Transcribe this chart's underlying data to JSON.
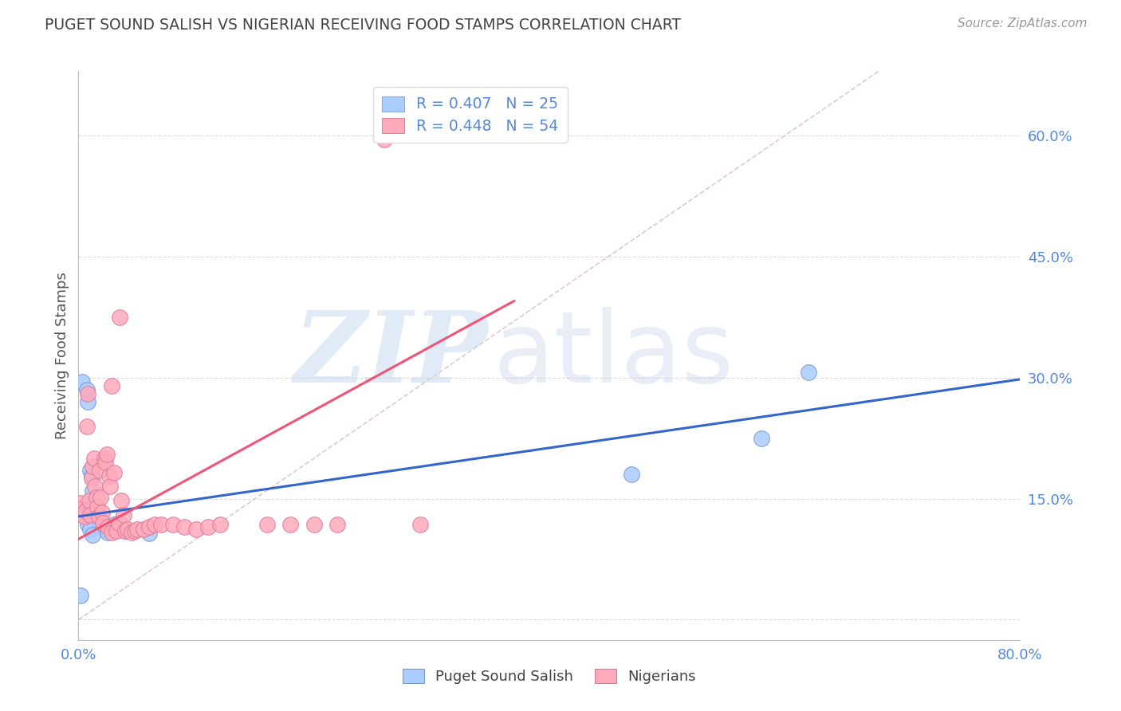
{
  "title": "PUGET SOUND SALISH VS NIGERIAN RECEIVING FOOD STAMPS CORRELATION CHART",
  "source": "Source: ZipAtlas.com",
  "ylabel": "Receiving Food Stamps",
  "xlim": [
    0.0,
    0.8
  ],
  "ylim": [
    -0.025,
    0.68
  ],
  "yticks": [
    0.0,
    0.15,
    0.3,
    0.45,
    0.6
  ],
  "ytick_labels": [
    "",
    "15.0%",
    "30.0%",
    "45.0%",
    "60.0%"
  ],
  "xticks": [
    0.0,
    0.1,
    0.2,
    0.3,
    0.4,
    0.5,
    0.6,
    0.7,
    0.8
  ],
  "xtick_labels": [
    "0.0%",
    "",
    "",
    "",
    "",
    "",
    "",
    "",
    "80.0%"
  ],
  "background_color": "#ffffff",
  "grid_color": "#cccccc",
  "title_color": "#444444",
  "tick_color": "#5588dd",
  "legend_entries": [
    {
      "label": "R = 0.407   N = 25",
      "color": "#aaccff",
      "edge": "#88aadd"
    },
    {
      "label": "R = 0.448   N = 54",
      "color": "#ffaabb",
      "edge": "#dd8899"
    }
  ],
  "pss_color": "#aaccff",
  "pss_edge": "#7799cc",
  "pss_line_color": "#3366cc",
  "pss_line": [
    [
      0.0,
      0.128
    ],
    [
      0.8,
      0.298
    ]
  ],
  "pss_points_x": [
    0.003,
    0.007,
    0.008,
    0.01,
    0.011,
    0.012,
    0.013,
    0.014,
    0.015,
    0.016,
    0.017,
    0.018,
    0.02,
    0.022,
    0.025,
    0.03,
    0.04,
    0.06,
    0.002,
    0.008,
    0.01,
    0.012,
    0.58,
    0.62,
    0.47
  ],
  "pss_points_y": [
    0.295,
    0.285,
    0.27,
    0.185,
    0.178,
    0.16,
    0.145,
    0.14,
    0.132,
    0.128,
    0.125,
    0.12,
    0.118,
    0.112,
    0.108,
    0.118,
    0.11,
    0.107,
    0.03,
    0.118,
    0.112,
    0.105,
    0.225,
    0.307,
    0.18
  ],
  "nig_color": "#ffaabb",
  "nig_edge": "#dd7799",
  "nig_line_color": "#ee5577",
  "nig_line": [
    [
      0.0,
      0.1
    ],
    [
      0.37,
      0.395
    ]
  ],
  "nig_points_x": [
    0.002,
    0.003,
    0.004,
    0.005,
    0.006,
    0.007,
    0.008,
    0.009,
    0.01,
    0.011,
    0.012,
    0.013,
    0.014,
    0.015,
    0.016,
    0.017,
    0.018,
    0.019,
    0.02,
    0.021,
    0.022,
    0.023,
    0.024,
    0.025,
    0.026,
    0.027,
    0.028,
    0.03,
    0.032,
    0.034,
    0.036,
    0.038,
    0.04,
    0.042,
    0.045,
    0.048,
    0.05,
    0.055,
    0.06,
    0.065,
    0.07,
    0.08,
    0.09,
    0.1,
    0.11,
    0.12,
    0.16,
    0.18,
    0.2,
    0.22,
    0.035,
    0.028,
    0.29,
    0.26
  ],
  "nig_points_y": [
    0.145,
    0.138,
    0.13,
    0.128,
    0.135,
    0.24,
    0.28,
    0.148,
    0.13,
    0.175,
    0.19,
    0.2,
    0.165,
    0.152,
    0.14,
    0.128,
    0.185,
    0.152,
    0.133,
    0.12,
    0.2,
    0.195,
    0.205,
    0.115,
    0.178,
    0.165,
    0.108,
    0.182,
    0.11,
    0.12,
    0.148,
    0.13,
    0.11,
    0.112,
    0.108,
    0.11,
    0.112,
    0.112,
    0.115,
    0.118,
    0.118,
    0.118,
    0.115,
    0.112,
    0.115,
    0.118,
    0.118,
    0.118,
    0.118,
    0.118,
    0.375,
    0.29,
    0.118,
    0.595
  ],
  "diagonal_color": "#ddbbbb",
  "diagonal_style": "--",
  "watermark_zip": "ZIP",
  "watermark_atlas": "atlas",
  "bottom_legend": [
    {
      "label": "Puget Sound Salish",
      "color": "#aaccff",
      "edge": "#7799cc"
    },
    {
      "label": "Nigerians",
      "color": "#ffaabb",
      "edge": "#dd7799"
    }
  ]
}
